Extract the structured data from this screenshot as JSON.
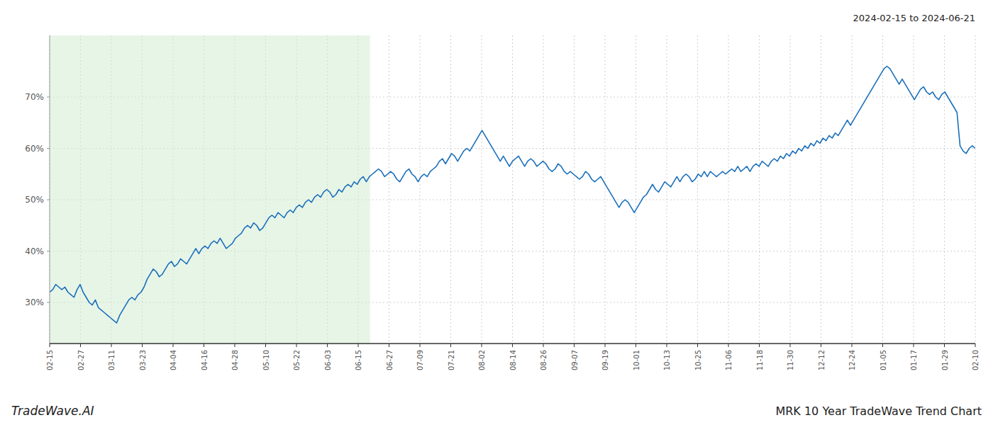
{
  "chart_data": {
    "type": "line",
    "title": "MRK 10 Year TradeWave Trend Chart",
    "subtitle": "2024-02-15 to 2024-06-21",
    "annotations": [
      "TradeWave.AI"
    ],
    "color": "#1a6fbb",
    "grid": true,
    "span": {
      "x": [
        0,
        105.225
      ],
      "color": "#d4ecd4"
    },
    "xlim": [
      0,
      304
    ],
    "xticks": [
      {
        "value": 0,
        "label": "02-15"
      },
      {
        "value": 10.133333333333333,
        "label": "02-27"
      },
      {
        "value": 20.266666666666666,
        "label": "03-11"
      },
      {
        "value": 30.4,
        "label": "03-23"
      },
      {
        "value": 40.53333333333333,
        "label": "04-04"
      },
      {
        "value": 50.666666666666664,
        "label": "04-16"
      },
      {
        "value": 60.8,
        "label": "04-28"
      },
      {
        "value": 70.93333333333334,
        "label": "05-10"
      },
      {
        "value": 81.06666666666666,
        "label": "05-22"
      },
      {
        "value": 91.2,
        "label": "06-03"
      },
      {
        "value": 101.33333333333333,
        "label": "06-15"
      },
      {
        "value": 111.46666666666667,
        "label": "06-27"
      },
      {
        "value": 121.6,
        "label": "07-09"
      },
      {
        "value": 131.73333333333332,
        "label": "07-21"
      },
      {
        "value": 141.86666666666667,
        "label": "08-02"
      },
      {
        "value": 152,
        "label": "08-14"
      },
      {
        "value": 162.13333333333333,
        "label": "08-26"
      },
      {
        "value": 172.26666666666665,
        "label": "09-07"
      },
      {
        "value": 182.4,
        "label": "09-19"
      },
      {
        "value": 192.53333333333333,
        "label": "10-01"
      },
      {
        "value": 202.66666666666666,
        "label": "10-13"
      },
      {
        "value": 212.8,
        "label": "10-25"
      },
      {
        "value": 222.93333333333334,
        "label": "11-06"
      },
      {
        "value": 233.06666666666666,
        "label": "11-18"
      },
      {
        "value": 243.2,
        "label": "11-30"
      },
      {
        "value": 253.33333333333334,
        "label": "12-12"
      },
      {
        "value": 263.46666666666664,
        "label": "12-24"
      },
      {
        "value": 273.6,
        "label": "01-05"
      },
      {
        "value": 283.73333333333335,
        "label": "01-17"
      },
      {
        "value": 293.8666666666667,
        "label": "01-29"
      },
      {
        "value": 304,
        "label": "02-10"
      }
    ],
    "ylim": [
      22,
      82
    ],
    "yticks": [
      {
        "value": 30,
        "label": "30%"
      },
      {
        "value": 40,
        "label": "40%"
      },
      {
        "value": 50,
        "label": "50%"
      },
      {
        "value": 60,
        "label": "60%"
      },
      {
        "value": 70,
        "label": "70%"
      }
    ],
    "values": [
      32.0,
      32.5,
      33.5,
      33.0,
      32.5,
      33.0,
      32.0,
      31.5,
      31.0,
      32.5,
      33.5,
      32.0,
      31.0,
      30.0,
      29.5,
      30.5,
      29.0,
      28.5,
      28.0,
      27.5,
      27.0,
      26.5,
      26.0,
      27.5,
      28.5,
      29.5,
      30.5,
      31.0,
      30.5,
      31.5,
      32.0,
      33.0,
      34.5,
      35.5,
      36.5,
      36.0,
      35.0,
      35.5,
      36.5,
      37.5,
      38.0,
      37.0,
      37.5,
      38.5,
      38.0,
      37.5,
      38.5,
      39.5,
      40.5,
      39.5,
      40.5,
      41.0,
      40.5,
      41.5,
      42.0,
      41.5,
      42.5,
      41.5,
      40.5,
      41.0,
      41.5,
      42.5,
      43.0,
      43.5,
      44.5,
      45.0,
      44.5,
      45.5,
      45.0,
      44.0,
      44.5,
      45.5,
      46.5,
      47.0,
      46.5,
      47.5,
      47.0,
      46.5,
      47.5,
      48.0,
      47.5,
      48.5,
      49.0,
      48.5,
      49.5,
      50.0,
      49.5,
      50.5,
      51.0,
      50.5,
      51.5,
      52.0,
      51.5,
      50.5,
      51.0,
      52.0,
      51.5,
      52.5,
      53.0,
      52.5,
      53.5,
      53.0,
      54.0,
      54.5,
      53.5,
      54.5,
      55.0,
      55.5,
      56.0,
      55.5,
      54.5,
      55.0,
      55.5,
      55.0,
      54.0,
      53.5,
      54.5,
      55.5,
      56.0,
      55.0,
      54.5,
      53.5,
      54.5,
      55.0,
      54.5,
      55.5,
      56.0,
      56.5,
      57.5,
      58.0,
      57.0,
      58.0,
      59.0,
      58.5,
      57.5,
      58.5,
      59.5,
      60.0,
      59.5,
      60.5,
      61.5,
      62.5,
      63.5,
      62.5,
      61.5,
      60.5,
      59.5,
      58.5,
      57.5,
      58.5,
      57.5,
      56.5,
      57.5,
      58.0,
      58.5,
      57.5,
      56.5,
      57.5,
      58.0,
      57.5,
      56.5,
      57.0,
      57.5,
      57.0,
      56.0,
      55.5,
      56.0,
      57.0,
      56.5,
      55.5,
      55.0,
      55.5,
      55.0,
      54.5,
      54.0,
      54.5,
      55.5,
      55.0,
      54.0,
      53.5,
      54.0,
      54.5,
      53.5,
      52.5,
      51.5,
      50.5,
      49.5,
      48.5,
      49.5,
      50.0,
      49.5,
      48.5,
      47.5,
      48.5,
      49.5,
      50.5,
      51.0,
      52.0,
      53.0,
      52.0,
      51.5,
      52.5,
      53.5,
      53.0,
      52.5,
      53.5,
      54.5,
      53.5,
      54.5,
      55.0,
      54.5,
      53.5,
      54.0,
      55.0,
      54.5,
      55.5,
      54.5,
      55.5,
      55.0,
      54.5,
      55.0,
      55.5,
      55.0,
      55.5,
      56.0,
      55.5,
      56.5,
      55.5,
      56.0,
      56.5,
      55.5,
      56.5,
      57.0,
      56.5,
      57.5,
      57.0,
      56.5,
      57.5,
      58.0,
      57.5,
      58.5,
      58.0,
      59.0,
      58.5,
      59.5,
      59.0,
      60.0,
      59.5,
      60.5,
      60.0,
      61.0,
      60.5,
      61.5,
      61.0,
      62.0,
      61.5,
      62.5,
      62.0,
      63.0,
      62.5,
      63.5,
      64.5,
      65.5,
      64.5,
      65.5,
      66.5,
      67.5,
      68.5,
      69.5,
      70.5,
      71.5,
      72.5,
      73.5,
      74.5,
      75.5,
      76.0,
      75.5,
      74.5,
      73.5,
      72.5,
      73.5,
      72.5,
      71.5,
      70.5,
      69.5,
      70.5,
      71.5,
      72.0,
      71.0,
      70.5,
      71.0,
      70.0,
      69.5,
      70.5,
      71.0,
      70.0,
      69.0,
      68.0,
      67.0,
      60.5,
      59.5,
      59.0,
      60.0,
      60.5,
      60.0
    ]
  }
}
